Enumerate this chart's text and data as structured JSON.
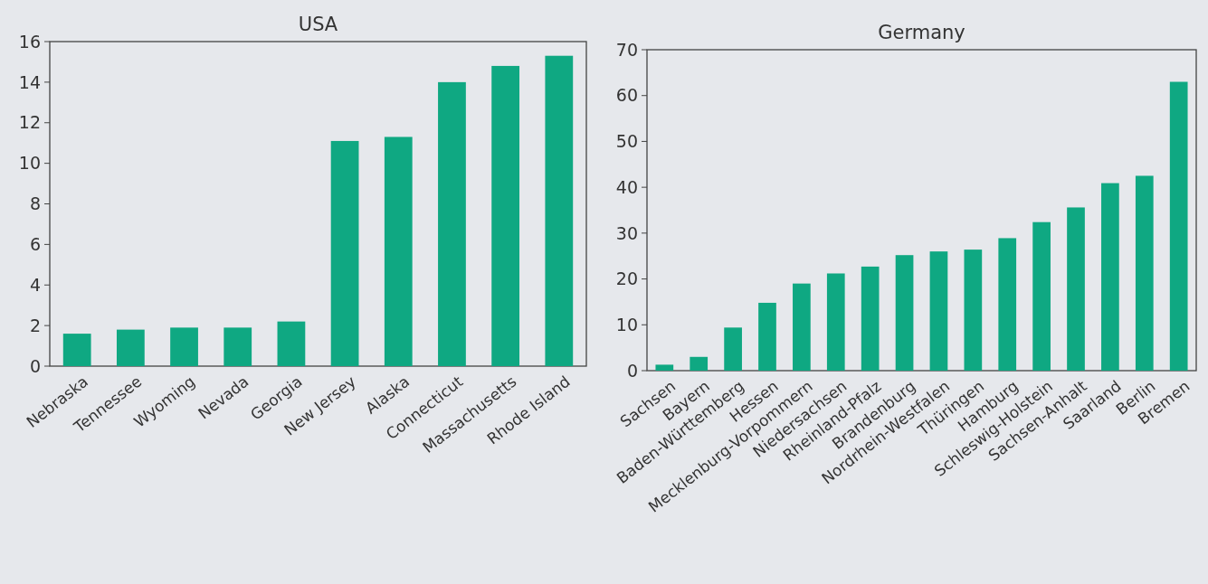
{
  "chart_data": [
    {
      "type": "bar",
      "title": "USA",
      "categories": [
        "Nebraska",
        "Tennessee",
        "Wyoming",
        "Nevada",
        "Georgia",
        "New Jersey",
        "Alaska",
        "Connecticut",
        "Massachusetts",
        "Rhode Island"
      ],
      "values": [
        1.6,
        1.8,
        1.9,
        1.9,
        2.2,
        11.1,
        11.3,
        14.0,
        14.8,
        15.3
      ],
      "color": "#0fa882",
      "ylim": [
        0,
        16
      ],
      "yticks": [
        0,
        2,
        4,
        6,
        8,
        10,
        12,
        14,
        16
      ],
      "grid": false
    },
    {
      "type": "bar",
      "title": "Germany",
      "categories": [
        "Sachsen",
        "Bayern",
        "Baden-Württemberg",
        "Hessen",
        "Mecklenburg-Vorpommern",
        "Niedersachsen",
        "Rheinland-Pfalz",
        "Brandenburg",
        "Nordrhein-Westfalen",
        "Thüringen",
        "Hamburg",
        "Schleswig-Holstein",
        "Sachsen-Anhalt",
        "Saarland",
        "Berlin",
        "Bremen"
      ],
      "values": [
        1.3,
        3.0,
        9.4,
        14.8,
        19.0,
        21.2,
        22.7,
        25.2,
        26.0,
        26.4,
        28.9,
        32.4,
        35.6,
        40.9,
        42.5,
        63.0
      ],
      "color": "#0fa882",
      "ylim": [
        0,
        70
      ],
      "yticks": [
        0,
        10,
        20,
        30,
        40,
        50,
        60,
        70
      ],
      "grid": false
    }
  ]
}
